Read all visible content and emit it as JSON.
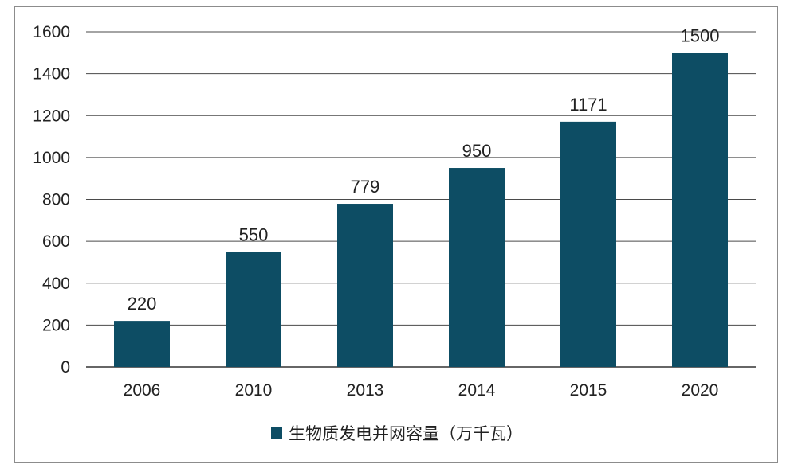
{
  "chart_data": {
    "type": "bar",
    "categories": [
      "2006",
      "2010",
      "2013",
      "2014",
      "2015",
      "2020"
    ],
    "series": [
      {
        "name": "生物质发电并网容量（万千瓦）",
        "values": [
          220,
          550,
          779,
          950,
          1171,
          1500
        ]
      }
    ],
    "ylim": [
      0,
      1600
    ],
    "yticks": [
      0,
      200,
      400,
      600,
      800,
      1000,
      1200,
      1400,
      1600
    ],
    "grid": true,
    "legend_position": "bottom",
    "bar_color": "#0d4d64",
    "data_labels": true
  }
}
